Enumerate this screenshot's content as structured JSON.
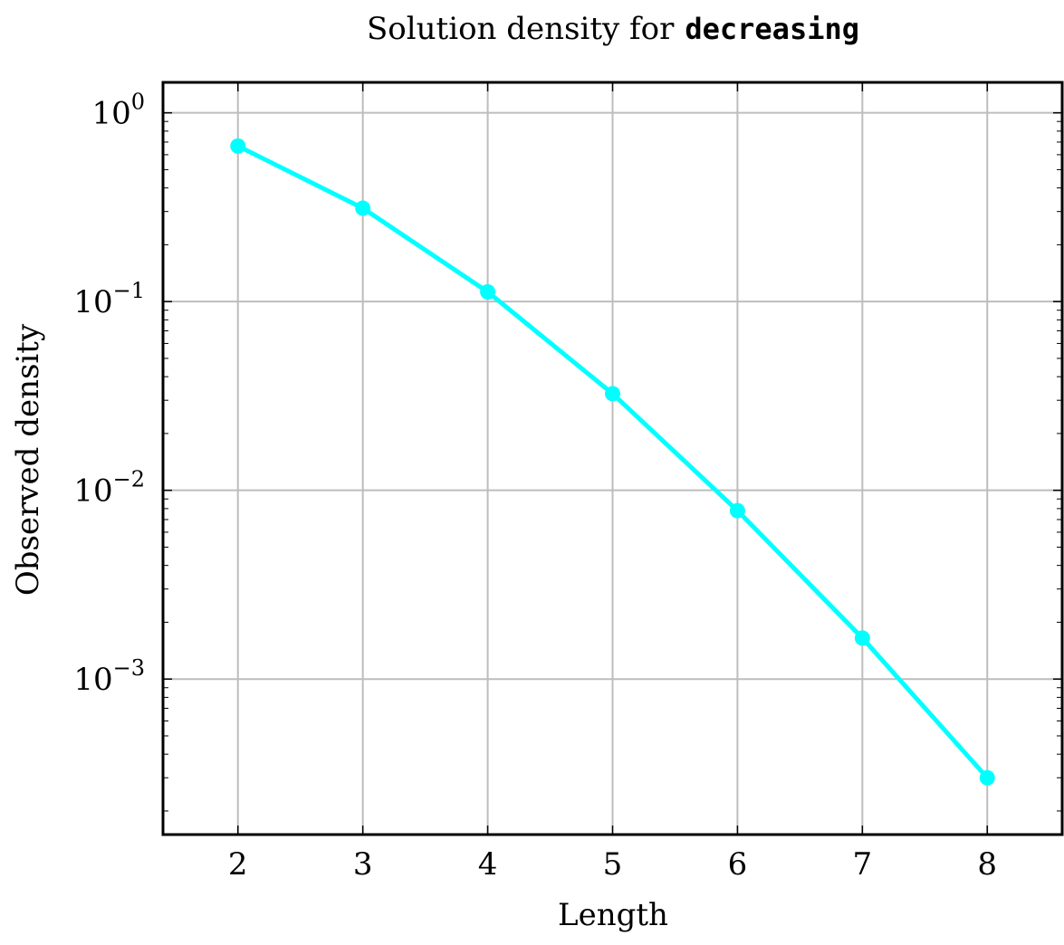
{
  "chart_data": {
    "type": "line",
    "title": "Solution density for",
    "title_code": "decreasing",
    "xlabel": "Length",
    "ylabel": "Observed density",
    "y_scale": "log",
    "xlim": [
      1.4,
      8.6
    ],
    "ylim": [
      0.00015,
      1.45
    ],
    "grid": true,
    "legend": "none",
    "x_ticks": [
      2,
      3,
      4,
      5,
      6,
      7,
      8
    ],
    "y_ticks": [
      {
        "value": 1,
        "base": "10",
        "exp": "0"
      },
      {
        "value": 0.1,
        "base": "10",
        "exp": "−1"
      },
      {
        "value": 0.01,
        "base": "10",
        "exp": "−2"
      },
      {
        "value": 0.001,
        "base": "10",
        "exp": "−3"
      }
    ],
    "series": [
      {
        "name": "decreasing",
        "color": "#00ffff",
        "x": [
          2,
          3,
          4,
          5,
          6,
          7,
          8
        ],
        "y": [
          0.667,
          0.3125,
          0.1125,
          0.0325,
          0.0078,
          0.00165,
          0.0003
        ]
      }
    ]
  }
}
